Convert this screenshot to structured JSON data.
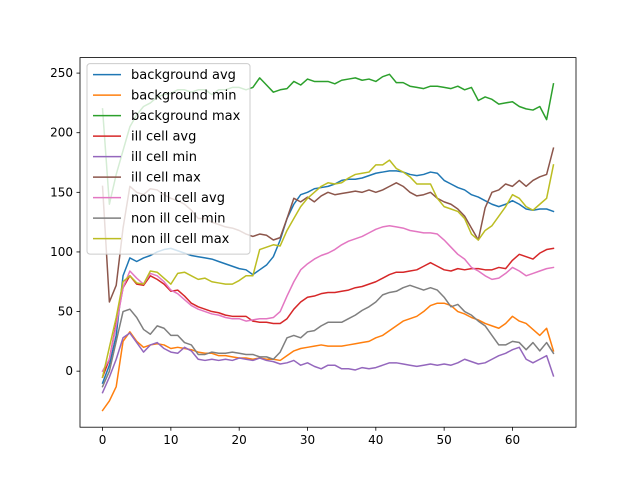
{
  "chart_data": {
    "type": "line",
    "title": "",
    "xlabel": "",
    "ylabel": "",
    "xlim": [
      -3.3,
      69.3
    ],
    "ylim": [
      -47,
      263
    ],
    "xticks": [
      0,
      10,
      20,
      30,
      40,
      50,
      60
    ],
    "yticks": [
      0,
      50,
      100,
      150,
      200,
      250
    ],
    "grid": false,
    "legend_position": "top-left",
    "x": [
      0,
      1,
      2,
      3,
      4,
      5,
      6,
      7,
      8,
      9,
      10,
      11,
      12,
      13,
      14,
      15,
      16,
      17,
      18,
      19,
      20,
      21,
      22,
      23,
      24,
      25,
      26,
      27,
      28,
      29,
      30,
      31,
      32,
      33,
      34,
      35,
      36,
      37,
      38,
      39,
      40,
      41,
      42,
      43,
      44,
      45,
      46,
      47,
      48,
      49,
      50,
      51,
      52,
      53,
      54,
      55,
      56,
      57,
      58,
      59,
      60,
      61,
      62,
      63,
      64,
      65,
      66
    ],
    "series": [
      {
        "name": "background avg",
        "color": "#1f77b4",
        "values": [
          -10,
          5,
          30,
          80,
          95,
          92,
          95,
          97,
          100,
          102,
          103,
          101,
          99,
          97,
          96,
          95,
          94,
          92,
          90,
          88,
          86,
          85,
          81,
          85,
          89,
          96,
          110,
          128,
          140,
          148,
          150,
          153,
          154,
          155,
          157,
          160,
          161,
          161,
          162,
          164,
          166,
          167,
          168,
          168,
          167,
          165,
          164,
          165,
          167,
          166,
          160,
          157,
          154,
          152,
          148,
          146,
          143,
          140,
          138,
          140,
          143,
          140,
          136,
          135,
          136,
          136,
          134
        ]
      },
      {
        "name": "background min",
        "color": "#ff7f0e",
        "values": [
          -33,
          -25,
          -13,
          25,
          33,
          25,
          20,
          22,
          23,
          22,
          19,
          20,
          19,
          18,
          16,
          15,
          15,
          13,
          13,
          12,
          11,
          11,
          10,
          11,
          10,
          10,
          9,
          13,
          17,
          19,
          20,
          21,
          22,
          21,
          21,
          21,
          22,
          23,
          24,
          25,
          28,
          30,
          34,
          38,
          42,
          44,
          46,
          50,
          55,
          57,
          57,
          55,
          50,
          48,
          45,
          43,
          40,
          38,
          36,
          40,
          46,
          42,
          40,
          35,
          30,
          36,
          17
        ]
      },
      {
        "name": "background max",
        "color": "#2ca02c",
        "values": [
          220,
          140,
          165,
          185,
          205,
          215,
          222,
          225,
          230,
          232,
          233,
          236,
          236,
          234,
          236,
          236,
          232,
          236,
          236,
          238,
          238,
          236,
          238,
          246,
          240,
          234,
          236,
          237,
          243,
          240,
          245,
          243,
          243,
          243,
          241,
          244,
          245,
          246,
          244,
          245,
          243,
          247,
          249,
          242,
          242,
          239,
          238,
          237,
          239,
          239,
          238,
          237,
          239,
          236,
          238,
          227,
          230,
          228,
          224,
          225,
          226,
          222,
          220,
          219,
          222,
          211,
          241
        ]
      },
      {
        "name": "ill cell avg",
        "color": "#d62728",
        "values": [
          -5,
          10,
          40,
          70,
          80,
          73,
          72,
          80,
          77,
          73,
          67,
          68,
          63,
          57,
          54,
          52,
          50,
          49,
          47,
          46,
          46,
          46,
          42,
          41,
          41,
          40,
          40,
          44,
          52,
          58,
          62,
          63,
          65,
          66,
          66,
          67,
          68,
          70,
          71,
          73,
          75,
          78,
          81,
          83,
          83,
          84,
          85,
          88,
          91,
          88,
          85,
          84,
          86,
          85,
          86,
          86,
          85,
          85,
          87,
          86,
          93,
          98,
          96,
          94,
          99,
          102,
          103
        ]
      },
      {
        "name": "ill cell min",
        "color": "#9467bd",
        "values": [
          -18,
          -5,
          10,
          28,
          32,
          24,
          16,
          22,
          24,
          19,
          16,
          15,
          20,
          17,
          10,
          9,
          10,
          9,
          10,
          9,
          11,
          10,
          9,
          11,
          9,
          8,
          6,
          7,
          9,
          5,
          7,
          4,
          2,
          5,
          5,
          2,
          2,
          1,
          3,
          2,
          3,
          5,
          7,
          7,
          6,
          5,
          4,
          5,
          6,
          5,
          6,
          5,
          7,
          10,
          8,
          6,
          7,
          10,
          13,
          15,
          18,
          20,
          10,
          7,
          10,
          13,
          -4
        ]
      },
      {
        "name": "ill cell max",
        "color": "#8c564b",
        "values": [
          155,
          58,
          72,
          120,
          155,
          150,
          148,
          153,
          152,
          148,
          145,
          143,
          140,
          135,
          128,
          128,
          125,
          123,
          121,
          120,
          118,
          115,
          113,
          115,
          114,
          110,
          112,
          128,
          145,
          142,
          146,
          142,
          147,
          150,
          148,
          149,
          150,
          151,
          150,
          152,
          150,
          152,
          155,
          158,
          155,
          150,
          147,
          148,
          150,
          145,
          142,
          140,
          136,
          130,
          120,
          110,
          137,
          150,
          152,
          157,
          155,
          160,
          155,
          160,
          163,
          165,
          187
        ]
      },
      {
        "name": "non ill cell avg",
        "color": "#e377c2",
        "values": [
          0,
          10,
          38,
          70,
          84,
          78,
          73,
          82,
          80,
          75,
          68,
          65,
          60,
          55,
          52,
          50,
          48,
          47,
          45,
          44,
          44,
          42,
          43,
          44,
          44,
          45,
          50,
          63,
          75,
          85,
          90,
          94,
          97,
          99,
          102,
          106,
          109,
          111,
          113,
          116,
          119,
          121,
          122,
          121,
          120,
          118,
          117,
          116,
          116,
          115,
          110,
          104,
          98,
          94,
          87,
          84,
          80,
          77,
          78,
          82,
          87,
          84,
          80,
          82,
          84,
          86,
          87
        ]
      },
      {
        "name": "non ill cell min",
        "color": "#7f7f7f",
        "values": [
          -13,
          0,
          25,
          50,
          52,
          45,
          35,
          31,
          38,
          36,
          30,
          30,
          24,
          22,
          14,
          14,
          16,
          15,
          15,
          16,
          15,
          14,
          14,
          12,
          12,
          10,
          16,
          28,
          30,
          28,
          33,
          34,
          38,
          41,
          41,
          41,
          44,
          47,
          51,
          54,
          58,
          64,
          66,
          67,
          70,
          72,
          70,
          68,
          70,
          68,
          62,
          54,
          56,
          50,
          47,
          42,
          38,
          30,
          22,
          22,
          25,
          24,
          18,
          24,
          17,
          24,
          15
        ]
      },
      {
        "name": "non ill cell max",
        "color": "#bcbd22",
        "values": [
          -5,
          20,
          45,
          75,
          80,
          74,
          73,
          84,
          83,
          78,
          73,
          82,
          83,
          80,
          77,
          78,
          75,
          74,
          73,
          73,
          76,
          80,
          80,
          102,
          104,
          106,
          105,
          118,
          128,
          138,
          145,
          150,
          155,
          158,
          157,
          158,
          162,
          165,
          166,
          167,
          173,
          173,
          177,
          170,
          167,
          163,
          157,
          157,
          157,
          145,
          138,
          136,
          134,
          128,
          115,
          110,
          118,
          122,
          130,
          138,
          148,
          145,
          138,
          135,
          140,
          145,
          173
        ]
      }
    ]
  }
}
